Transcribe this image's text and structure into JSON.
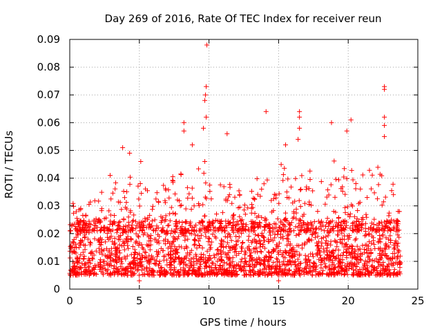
{
  "chart_data": {
    "type": "scatter",
    "title": "Day 269 of 2016, Rate Of TEC Index for receiver reun",
    "xlabel": "GPS time / hours",
    "ylabel": "ROTI / TECUs",
    "xlim": [
      0,
      25
    ],
    "ylim": [
      0,
      0.09
    ],
    "xticks": [
      0,
      5,
      10,
      15,
      20,
      25
    ],
    "yticks": [
      0,
      0.01,
      0.02,
      0.03,
      0.04,
      0.05,
      0.06,
      0.07,
      0.08,
      0.09
    ],
    "xtick_labels": [
      "0",
      "5",
      "10",
      "15",
      "20",
      "25"
    ],
    "ytick_labels": [
      "0",
      "0.01",
      "0.02",
      "0.03",
      "0.04",
      "0.05",
      "0.06",
      "0.07",
      "0.08",
      "0.09"
    ],
    "grid": true,
    "marker": "+",
    "color": "#ff0000",
    "series": [
      {
        "name": "ROTI",
        "data_extent_hours": [
          0,
          23.8
        ],
        "typical_band": [
          0.005,
          0.025
        ],
        "notable_points": [
          {
            "x": 9.85,
            "y": 0.088
          },
          {
            "x": 9.8,
            "y": 0.073
          },
          {
            "x": 9.75,
            "y": 0.07
          },
          {
            "x": 9.7,
            "y": 0.068
          },
          {
            "x": 9.8,
            "y": 0.062
          },
          {
            "x": 9.6,
            "y": 0.058
          },
          {
            "x": 8.2,
            "y": 0.06
          },
          {
            "x": 8.2,
            "y": 0.057
          },
          {
            "x": 8.8,
            "y": 0.052
          },
          {
            "x": 9.7,
            "y": 0.046
          },
          {
            "x": 11.3,
            "y": 0.056
          },
          {
            "x": 14.1,
            "y": 0.064
          },
          {
            "x": 16.5,
            "y": 0.064
          },
          {
            "x": 16.5,
            "y": 0.062
          },
          {
            "x": 16.5,
            "y": 0.058
          },
          {
            "x": 16.4,
            "y": 0.054
          },
          {
            "x": 15.5,
            "y": 0.052
          },
          {
            "x": 18.8,
            "y": 0.06
          },
          {
            "x": 19.9,
            "y": 0.057
          },
          {
            "x": 20.2,
            "y": 0.061
          },
          {
            "x": 22.6,
            "y": 0.073
          },
          {
            "x": 22.6,
            "y": 0.072
          },
          {
            "x": 22.6,
            "y": 0.062
          },
          {
            "x": 22.6,
            "y": 0.059
          },
          {
            "x": 22.6,
            "y": 0.055
          },
          {
            "x": 3.8,
            "y": 0.051
          },
          {
            "x": 4.3,
            "y": 0.049
          },
          {
            "x": 5.1,
            "y": 0.046
          },
          {
            "x": 2.9,
            "y": 0.041
          },
          {
            "x": 15.0,
            "y": 0.003
          },
          {
            "x": 5.0,
            "y": 0.003
          }
        ],
        "activity_profile": [
          {
            "x": 0,
            "peak": 0.036
          },
          {
            "x": 1,
            "peak": 0.03
          },
          {
            "x": 2,
            "peak": 0.034
          },
          {
            "x": 3,
            "peak": 0.038
          },
          {
            "x": 4,
            "peak": 0.042
          },
          {
            "x": 5,
            "peak": 0.04
          },
          {
            "x": 6,
            "peak": 0.036
          },
          {
            "x": 7,
            "peak": 0.04
          },
          {
            "x": 8,
            "peak": 0.042
          },
          {
            "x": 9,
            "peak": 0.045
          },
          {
            "x": 10,
            "peak": 0.04
          },
          {
            "x": 11,
            "peak": 0.042
          },
          {
            "x": 12,
            "peak": 0.04
          },
          {
            "x": 13,
            "peak": 0.04
          },
          {
            "x": 14,
            "peak": 0.044
          },
          {
            "x": 15,
            "peak": 0.046
          },
          {
            "x": 16,
            "peak": 0.046
          },
          {
            "x": 17,
            "peak": 0.044
          },
          {
            "x": 18,
            "peak": 0.042
          },
          {
            "x": 19,
            "peak": 0.048
          },
          {
            "x": 20,
            "peak": 0.044
          },
          {
            "x": 21,
            "peak": 0.042
          },
          {
            "x": 22,
            "peak": 0.046
          },
          {
            "x": 23,
            "peak": 0.04
          },
          {
            "x": 23.8,
            "peak": 0.036
          }
        ]
      }
    ]
  }
}
